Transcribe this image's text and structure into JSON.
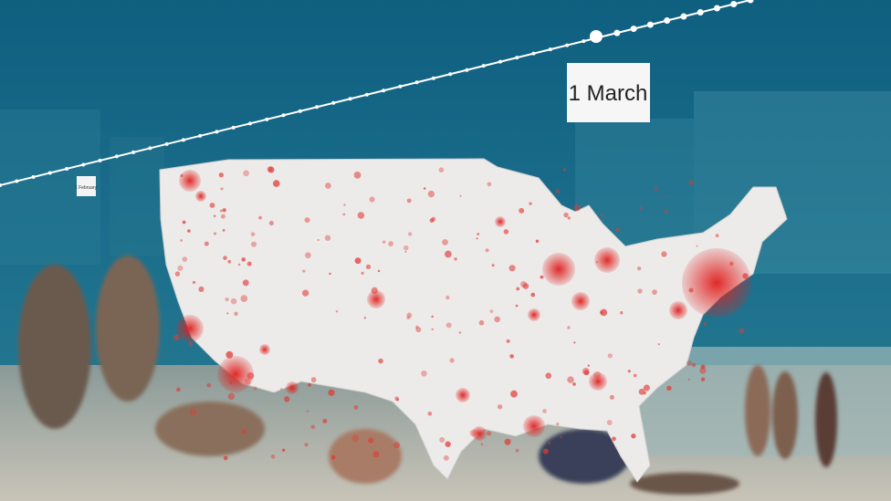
{
  "timeline": {
    "start_label": "1 February",
    "current_label": "1 March"
  }
}
